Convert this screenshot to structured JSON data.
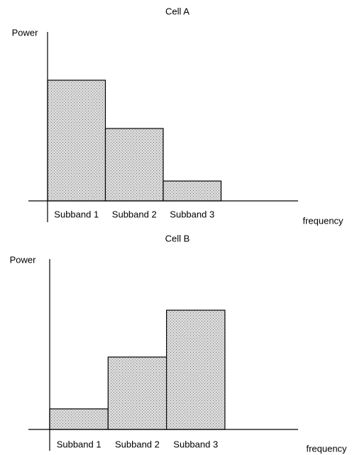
{
  "chart_data": [
    {
      "type": "bar",
      "title": "Cell A",
      "y_label": "Power",
      "x_label": "frequency",
      "categories": [
        "Subband 1",
        "Subband 2",
        "Subband 3"
      ],
      "values": [
        170,
        102,
        28
      ],
      "color": "#d9d9d9",
      "ylim": [
        0,
        240
      ]
    },
    {
      "type": "bar",
      "title": "Cell B",
      "y_label": "Power",
      "x_label": "frequency",
      "categories": [
        "Subband 1",
        "Subband 2",
        "Subband 3"
      ],
      "values": [
        29,
        102,
        168
      ],
      "color": "#d9d9d9",
      "ylim": [
        0,
        240
      ]
    }
  ]
}
